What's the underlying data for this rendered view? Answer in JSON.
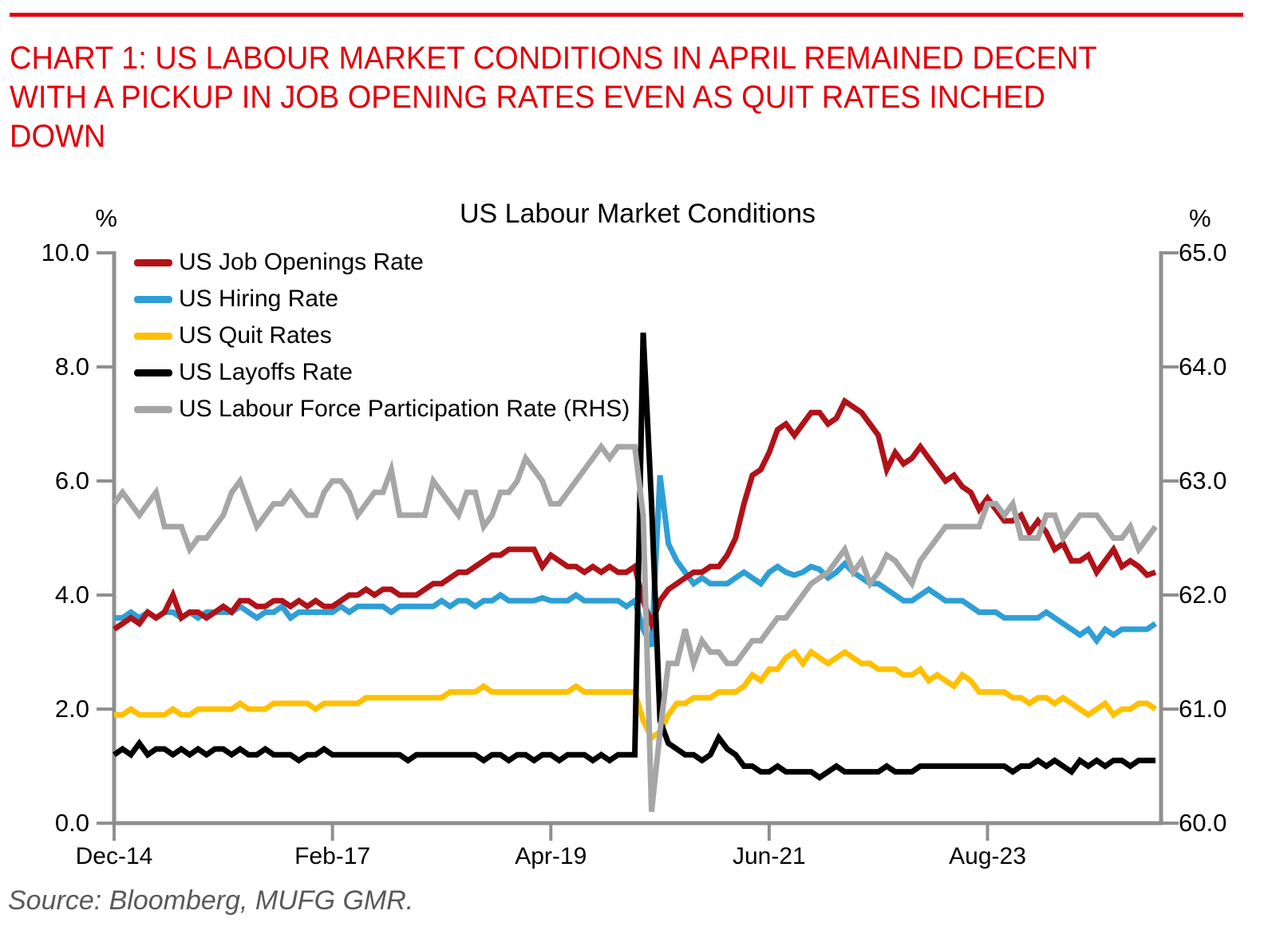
{
  "page": {
    "accent_color": "#E2000A",
    "title_lines": [
      "CHART 1: US LABOUR MARKET CONDITIONS IN APRIL REMAINED DECENT",
      "WITH A PICKUP IN JOB OPENING RATES EVEN AS QUIT RATES INCHED",
      "DOWN"
    ],
    "source": "Source: Bloomberg, MUFG GMR."
  },
  "chart_data": {
    "type": "line",
    "title": "US Labour Market Conditions",
    "frequency": "monthly",
    "start": "Dec-14",
    "end": "Apr-25",
    "grid": "off",
    "legend_position": "top-left",
    "axis_color": "#8F8F8F",
    "left_axis": {
      "unit": "%",
      "min": 0,
      "max": 10,
      "tick_labels": [
        "10.0",
        "8.0",
        "6.0",
        "4.0",
        "2.0",
        "0.0"
      ]
    },
    "right_axis": {
      "unit": "%",
      "min": 60,
      "max": 65,
      "tick_labels": [
        "65.0",
        "64.0",
        "63.0",
        "62.0",
        "61.0",
        "60.0"
      ]
    },
    "x_axis": {
      "tick_labels": [
        "Dec-14",
        "Feb-17",
        "Apr-19",
        "Jun-21",
        "Aug-23"
      ],
      "tick_month_index": [
        0,
        26,
        52,
        78,
        104
      ]
    },
    "series": [
      {
        "name": "US Job Openings Rate",
        "color": "#B11218",
        "axis": "left",
        "values": [
          3.4,
          3.5,
          3.6,
          3.5,
          3.7,
          3.6,
          3.7,
          4.0,
          3.6,
          3.7,
          3.7,
          3.6,
          3.7,
          3.8,
          3.7,
          3.9,
          3.9,
          3.8,
          3.8,
          3.9,
          3.9,
          3.8,
          3.9,
          3.8,
          3.9,
          3.8,
          3.8,
          3.9,
          4.0,
          4.0,
          4.1,
          4.0,
          4.1,
          4.1,
          4.0,
          4.0,
          4.0,
          4.1,
          4.2,
          4.2,
          4.3,
          4.4,
          4.4,
          4.5,
          4.6,
          4.7,
          4.7,
          4.8,
          4.8,
          4.8,
          4.8,
          4.5,
          4.7,
          4.6,
          4.5,
          4.5,
          4.4,
          4.5,
          4.4,
          4.5,
          4.4,
          4.4,
          4.5,
          3.9,
          3.5,
          3.9,
          4.1,
          4.2,
          4.3,
          4.4,
          4.4,
          4.5,
          4.5,
          4.7,
          5.0,
          5.6,
          6.1,
          6.2,
          6.5,
          6.9,
          7.0,
          6.8,
          7.0,
          7.2,
          7.2,
          7.0,
          7.1,
          7.4,
          7.3,
          7.2,
          7.0,
          6.8,
          6.2,
          6.5,
          6.3,
          6.4,
          6.6,
          6.4,
          6.2,
          6.0,
          6.1,
          5.9,
          5.8,
          5.5,
          5.7,
          5.5,
          5.3,
          5.3,
          5.4,
          5.1,
          5.3,
          5.1,
          4.8,
          4.9,
          4.6,
          4.6,
          4.7,
          4.4,
          4.6,
          4.8,
          4.5,
          4.6,
          4.5,
          4.35,
          4.4
        ]
      },
      {
        "name": "US Hiring Rate",
        "color": "#2E9FD6",
        "axis": "left",
        "values": [
          3.6,
          3.6,
          3.7,
          3.6,
          3.7,
          3.6,
          3.7,
          3.7,
          3.6,
          3.7,
          3.6,
          3.7,
          3.7,
          3.7,
          3.7,
          3.8,
          3.7,
          3.6,
          3.7,
          3.7,
          3.8,
          3.6,
          3.7,
          3.7,
          3.7,
          3.7,
          3.7,
          3.8,
          3.7,
          3.8,
          3.8,
          3.8,
          3.8,
          3.7,
          3.8,
          3.8,
          3.8,
          3.8,
          3.8,
          3.9,
          3.8,
          3.9,
          3.9,
          3.8,
          3.9,
          3.9,
          4.0,
          3.9,
          3.9,
          3.9,
          3.9,
          3.95,
          3.9,
          3.9,
          3.9,
          4.0,
          3.9,
          3.9,
          3.9,
          3.9,
          3.9,
          3.8,
          3.9,
          3.4,
          3.1,
          6.1,
          4.9,
          4.6,
          4.4,
          4.2,
          4.3,
          4.2,
          4.2,
          4.2,
          4.3,
          4.4,
          4.3,
          4.2,
          4.4,
          4.5,
          4.4,
          4.35,
          4.4,
          4.5,
          4.45,
          4.3,
          4.4,
          4.55,
          4.4,
          4.3,
          4.2,
          4.2,
          4.1,
          4.0,
          3.9,
          3.9,
          4.0,
          4.1,
          4.0,
          3.9,
          3.9,
          3.9,
          3.8,
          3.7,
          3.7,
          3.7,
          3.6,
          3.6,
          3.6,
          3.6,
          3.6,
          3.7,
          3.6,
          3.5,
          3.4,
          3.3,
          3.4,
          3.2,
          3.4,
          3.3,
          3.4,
          3.4,
          3.4,
          3.4,
          3.5
        ]
      },
      {
        "name": "US Quit Rates",
        "color": "#FFC000",
        "axis": "left",
        "values": [
          1.9,
          1.9,
          2.0,
          1.9,
          1.9,
          1.9,
          1.9,
          2.0,
          1.9,
          1.9,
          2.0,
          2.0,
          2.0,
          2.0,
          2.0,
          2.1,
          2.0,
          2.0,
          2.0,
          2.1,
          2.1,
          2.1,
          2.1,
          2.1,
          2.0,
          2.1,
          2.1,
          2.1,
          2.1,
          2.1,
          2.2,
          2.2,
          2.2,
          2.2,
          2.2,
          2.2,
          2.2,
          2.2,
          2.2,
          2.2,
          2.3,
          2.3,
          2.3,
          2.3,
          2.4,
          2.3,
          2.3,
          2.3,
          2.3,
          2.3,
          2.3,
          2.3,
          2.3,
          2.3,
          2.3,
          2.4,
          2.3,
          2.3,
          2.3,
          2.3,
          2.3,
          2.3,
          2.3,
          1.8,
          1.5,
          1.6,
          1.9,
          2.1,
          2.1,
          2.2,
          2.2,
          2.2,
          2.3,
          2.3,
          2.3,
          2.4,
          2.6,
          2.5,
          2.7,
          2.7,
          2.9,
          3.0,
          2.8,
          3.0,
          2.9,
          2.8,
          2.9,
          3.0,
          2.9,
          2.8,
          2.8,
          2.7,
          2.7,
          2.7,
          2.6,
          2.6,
          2.7,
          2.5,
          2.6,
          2.5,
          2.4,
          2.6,
          2.5,
          2.3,
          2.3,
          2.3,
          2.3,
          2.2,
          2.2,
          2.1,
          2.2,
          2.2,
          2.1,
          2.2,
          2.1,
          2.0,
          1.9,
          2.0,
          2.1,
          1.9,
          2.0,
          2.0,
          2.1,
          2.1,
          2.0
        ]
      },
      {
        "name": "US Layoffs Rate",
        "color": "#000000",
        "axis": "left",
        "values": [
          1.2,
          1.3,
          1.2,
          1.4,
          1.2,
          1.3,
          1.3,
          1.2,
          1.3,
          1.2,
          1.3,
          1.2,
          1.3,
          1.3,
          1.2,
          1.3,
          1.2,
          1.2,
          1.3,
          1.2,
          1.2,
          1.2,
          1.1,
          1.2,
          1.2,
          1.3,
          1.2,
          1.2,
          1.2,
          1.2,
          1.2,
          1.2,
          1.2,
          1.2,
          1.2,
          1.1,
          1.2,
          1.2,
          1.2,
          1.2,
          1.2,
          1.2,
          1.2,
          1.2,
          1.1,
          1.2,
          1.2,
          1.1,
          1.2,
          1.2,
          1.1,
          1.2,
          1.2,
          1.1,
          1.2,
          1.2,
          1.2,
          1.1,
          1.2,
          1.1,
          1.2,
          1.2,
          1.2,
          8.6,
          5.6,
          1.8,
          1.4,
          1.3,
          1.2,
          1.2,
          1.1,
          1.2,
          1.5,
          1.3,
          1.2,
          1.0,
          1.0,
          0.9,
          0.9,
          1.0,
          0.9,
          0.9,
          0.9,
          0.9,
          0.8,
          0.9,
          1.0,
          0.9,
          0.9,
          0.9,
          0.9,
          0.9,
          1.0,
          0.9,
          0.9,
          0.9,
          1.0,
          1.0,
          1.0,
          1.0,
          1.0,
          1.0,
          1.0,
          1.0,
          1.0,
          1.0,
          1.0,
          0.9,
          1.0,
          1.0,
          1.1,
          1.0,
          1.1,
          1.0,
          0.9,
          1.1,
          1.0,
          1.1,
          1.0,
          1.1,
          1.1,
          1.0,
          1.1,
          1.1,
          1.1
        ]
      },
      {
        "name": "US Labour Force Participation Rate (RHS)",
        "color": "#A6A6A6",
        "axis": "right",
        "values": [
          62.8,
          62.9,
          62.8,
          62.7,
          62.8,
          62.9,
          62.6,
          62.6,
          62.6,
          62.4,
          62.5,
          62.5,
          62.6,
          62.7,
          62.9,
          63.0,
          62.8,
          62.6,
          62.7,
          62.8,
          62.8,
          62.9,
          62.8,
          62.7,
          62.7,
          62.9,
          63.0,
          63.0,
          62.9,
          62.7,
          62.8,
          62.9,
          62.9,
          63.1,
          62.7,
          62.7,
          62.7,
          62.7,
          63.0,
          62.9,
          62.8,
          62.7,
          62.9,
          62.9,
          62.6,
          62.7,
          62.9,
          62.9,
          63.0,
          63.2,
          63.1,
          63.0,
          62.8,
          62.8,
          62.9,
          63.0,
          63.1,
          63.2,
          63.3,
          63.2,
          63.3,
          63.3,
          63.3,
          62.7,
          60.1,
          60.8,
          61.4,
          61.4,
          61.7,
          61.4,
          61.6,
          61.5,
          61.5,
          61.4,
          61.4,
          61.5,
          61.6,
          61.6,
          61.7,
          61.8,
          61.8,
          61.9,
          62.0,
          62.1,
          62.15,
          62.2,
          62.3,
          62.4,
          62.2,
          62.3,
          62.1,
          62.2,
          62.35,
          62.3,
          62.2,
          62.1,
          62.3,
          62.4,
          62.5,
          62.6,
          62.6,
          62.6,
          62.6,
          62.6,
          62.8,
          62.8,
          62.7,
          62.8,
          62.5,
          62.5,
          62.5,
          62.7,
          62.7,
          62.5,
          62.6,
          62.7,
          62.7,
          62.7,
          62.6,
          62.5,
          62.5,
          62.6,
          62.4,
          62.5,
          62.6
        ]
      }
    ]
  }
}
